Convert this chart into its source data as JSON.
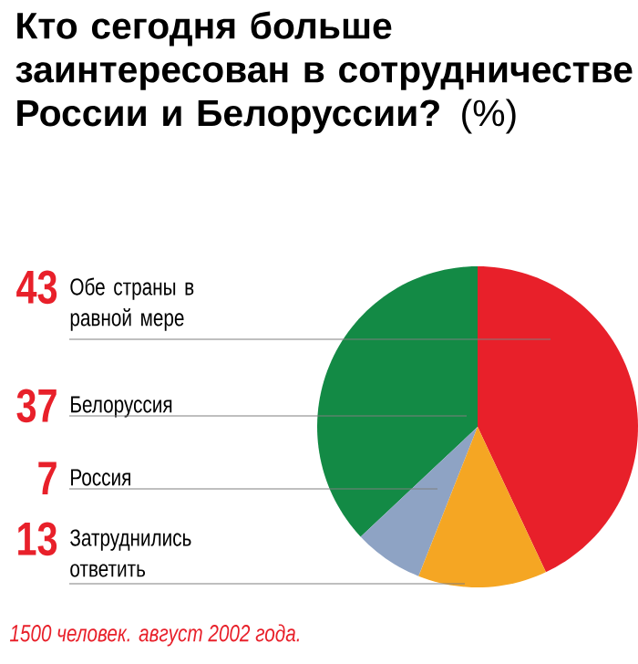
{
  "chart_data": {
    "type": "pie",
    "title": "**Кто сегодня больше заинтересован в сотрудничестве России и Белоруссии?** (%)",
    "categories": [
      "Обе страны в равной мере",
      "Белоруссия",
      "Россия",
      "Затруднились ответить"
    ],
    "values": [
      43,
      37,
      7,
      13
    ],
    "value_labels": [
      "43",
      "37",
      "7",
      "13"
    ],
    "data_labels": true,
    "colors": [
      "#e8202a",
      "#138a45",
      "#8ea3c4",
      "#f5a623"
    ],
    "annotations": [
      "1500 человек. август 2002 года."
    ]
  }
}
